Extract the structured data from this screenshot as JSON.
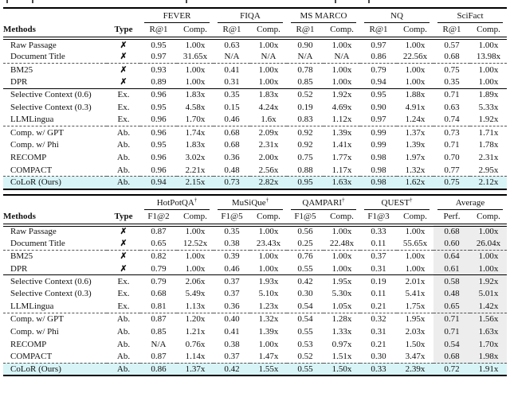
{
  "colors": {
    "highlight_row": "#d8f4f7",
    "average_col_bg": "#ededed",
    "rule": "#000000",
    "dashed_rule": "#555555"
  },
  "tables": [
    {
      "methods_header": "Methods",
      "type_header": "Type",
      "groups": [
        {
          "label": "FEVER",
          "sup": "",
          "metrics": [
            "R@1",
            "Comp."
          ]
        },
        {
          "label": "FIQA",
          "sup": "",
          "metrics": [
            "R@1",
            "Comp."
          ]
        },
        {
          "label": "MS MARCO",
          "sup": "",
          "metrics": [
            "R@1",
            "Comp."
          ]
        },
        {
          "label": "NQ",
          "sup": "",
          "metrics": [
            "R@1",
            "Comp."
          ]
        },
        {
          "label": "SciFact",
          "sup": "",
          "metrics": [
            "R@1",
            "Comp."
          ]
        }
      ],
      "shade_last_cols": 0,
      "row_groups": [
        {
          "sep": "none",
          "rows": [
            {
              "method": "Raw Passage",
              "type": "✗",
              "highlight": false,
              "values": [
                "0.95",
                "1.00x",
                "0.63",
                "1.00x",
                "0.90",
                "1.00x",
                "0.97",
                "1.00x",
                "0.57",
                "1.00x"
              ]
            },
            {
              "method": "Document Title",
              "type": "✗",
              "highlight": false,
              "values": [
                "0.97",
                "31.65x",
                "N/A",
                "N/A",
                "N/A",
                "N/A",
                "0.86",
                "22.56x",
                "0.68",
                "13.98x"
              ]
            }
          ]
        },
        {
          "sep": "dashed",
          "rows": [
            {
              "method": "BM25",
              "type": "✗",
              "highlight": false,
              "values": [
                "0.93",
                "1.00x",
                "0.41",
                "1.00x",
                "0.78",
                "1.00x",
                "0.79",
                "1.00x",
                "0.75",
                "1.00x"
              ]
            },
            {
              "method": "DPR",
              "type": "✗",
              "highlight": false,
              "values": [
                "0.89",
                "1.00x",
                "0.31",
                "1.00x",
                "0.85",
                "1.00x",
                "0.94",
                "1.00x",
                "0.35",
                "1.00x"
              ]
            }
          ]
        },
        {
          "sep": "solid",
          "rows": [
            {
              "method": "Selective Context (0.6)",
              "type": "Ex.",
              "highlight": false,
              "values": [
                "0.96",
                "1.83x",
                "0.35",
                "1.83x",
                "0.52",
                "1.92x",
                "0.95",
                "1.88x",
                "0.71",
                "1.89x"
              ]
            },
            {
              "method": "Selective Context (0.3)",
              "type": "Ex.",
              "highlight": false,
              "values": [
                "0.95",
                "4.58x",
                "0.15",
                "4.24x",
                "0.19",
                "4.69x",
                "0.90",
                "4.91x",
                "0.63",
                "5.33x"
              ]
            },
            {
              "method": "LLMLingua",
              "type": "Ex.",
              "highlight": false,
              "values": [
                "0.96",
                "1.70x",
                "0.46",
                "1.6x",
                "0.83",
                "1.12x",
                "0.97",
                "1.24x",
                "0.74",
                "1.92x"
              ]
            }
          ]
        },
        {
          "sep": "dashed",
          "rows": [
            {
              "method": "Comp. w/ GPT",
              "type": "Ab.",
              "highlight": false,
              "values": [
                "0.96",
                "1.74x",
                "0.68",
                "2.09x",
                "0.92",
                "1.39x",
                "0.99",
                "1.37x",
                "0.73",
                "1.71x"
              ]
            },
            {
              "method": "Comp. w/ Phi",
              "type": "Ab.",
              "highlight": false,
              "values": [
                "0.95",
                "1.83x",
                "0.68",
                "2.31x",
                "0.92",
                "1.41x",
                "0.99",
                "1.39x",
                "0.71",
                "1.78x"
              ]
            },
            {
              "method": "RECOMP",
              "type": "Ab.",
              "highlight": false,
              "values": [
                "0.96",
                "3.02x",
                "0.36",
                "2.00x",
                "0.75",
                "1.77x",
                "0.98",
                "1.97x",
                "0.70",
                "2.31x"
              ]
            },
            {
              "method": "COMPACT",
              "type": "Ab.",
              "highlight": false,
              "values": [
                "0.96",
                "2.21x",
                "0.48",
                "2.56x",
                "0.88",
                "1.17x",
                "0.98",
                "1.32x",
                "0.77",
                "2.95x"
              ]
            }
          ]
        },
        {
          "sep": "dashed",
          "rows": [
            {
              "method": "CoLoR (Ours)",
              "type": "Ab.",
              "highlight": true,
              "values": [
                "0.94",
                "2.15x",
                "0.73",
                "2.82x",
                "0.95",
                "1.63x",
                "0.98",
                "1.62x",
                "0.75",
                "2.12x"
              ]
            }
          ]
        }
      ]
    },
    {
      "methods_header": "Methods",
      "type_header": "Type",
      "groups": [
        {
          "label": "HotPotQA",
          "sup": "†",
          "metrics": [
            "F1@2",
            "Comp."
          ]
        },
        {
          "label": "MuSiQue",
          "sup": "†",
          "metrics": [
            "F1@5",
            "Comp."
          ]
        },
        {
          "label": "QAMPARI",
          "sup": "†",
          "metrics": [
            "F1@5",
            "Comp."
          ]
        },
        {
          "label": "QUEST",
          "sup": "†",
          "metrics": [
            "F1@3",
            "Comp."
          ]
        },
        {
          "label": "Average",
          "sup": "",
          "metrics": [
            "Perf.",
            "Comp."
          ]
        }
      ],
      "shade_last_cols": 2,
      "row_groups": [
        {
          "sep": "none",
          "rows": [
            {
              "method": "Raw Passage",
              "type": "✗",
              "highlight": false,
              "values": [
                "0.87",
                "1.00x",
                "0.35",
                "1.00x",
                "0.56",
                "1.00x",
                "0.33",
                "1.00x",
                "0.68",
                "1.00x"
              ]
            },
            {
              "method": "Document Title",
              "type": "✗",
              "highlight": false,
              "values": [
                "0.65",
                "12.52x",
                "0.38",
                "23.43x",
                "0.25",
                "22.48x",
                "0.11",
                "55.65x",
                "0.60",
                "26.04x"
              ]
            }
          ]
        },
        {
          "sep": "dashed",
          "rows": [
            {
              "method": "BM25",
              "type": "✗",
              "highlight": false,
              "values": [
                "0.82",
                "1.00x",
                "0.39",
                "1.00x",
                "0.76",
                "1.00x",
                "0.37",
                "1.00x",
                "0.64",
                "1.00x"
              ]
            },
            {
              "method": "DPR",
              "type": "✗",
              "highlight": false,
              "values": [
                "0.79",
                "1.00x",
                "0.46",
                "1.00x",
                "0.55",
                "1.00x",
                "0.31",
                "1.00x",
                "0.61",
                "1.00x"
              ]
            }
          ]
        },
        {
          "sep": "solid",
          "rows": [
            {
              "method": "Selective Context (0.6)",
              "type": "Ex.",
              "highlight": false,
              "values": [
                "0.79",
                "2.06x",
                "0.37",
                "1.93x",
                "0.42",
                "1.95x",
                "0.19",
                "2.01x",
                "0.58",
                "1.92x"
              ]
            },
            {
              "method": "Selective Context (0.3)",
              "type": "Ex.",
              "highlight": false,
              "values": [
                "0.68",
                "5.49x",
                "0.37",
                "5.10x",
                "0.30",
                "5.30x",
                "0.11",
                "5.41x",
                "0.48",
                "5.01x"
              ]
            },
            {
              "method": "LLMLingua",
              "type": "Ex.",
              "highlight": false,
              "values": [
                "0.81",
                "1.13x",
                "0.36",
                "1.23x",
                "0.54",
                "1.05x",
                "0.21",
                "1.75x",
                "0.65",
                "1.42x"
              ]
            }
          ]
        },
        {
          "sep": "dashed",
          "rows": [
            {
              "method": "Comp. w/ GPT",
              "type": "Ab.",
              "highlight": false,
              "values": [
                "0.87",
                "1.20x",
                "0.40",
                "1.32x",
                "0.54",
                "1.28x",
                "0.32",
                "1.95x",
                "0.71",
                "1.56x"
              ]
            },
            {
              "method": "Comp. w/ Phi",
              "type": "Ab.",
              "highlight": false,
              "values": [
                "0.85",
                "1.21x",
                "0.41",
                "1.39x",
                "0.55",
                "1.33x",
                "0.31",
                "2.03x",
                "0.71",
                "1.63x"
              ]
            },
            {
              "method": "RECOMP",
              "type": "Ab.",
              "highlight": false,
              "values": [
                "N/A",
                "0.76x",
                "0.38",
                "1.00x",
                "0.53",
                "0.97x",
                "0.21",
                "1.50x",
                "0.54",
                "1.70x"
              ]
            },
            {
              "method": "COMPACT",
              "type": "Ab.",
              "highlight": false,
              "values": [
                "0.87",
                "1.14x",
                "0.37",
                "1.47x",
                "0.52",
                "1.51x",
                "0.30",
                "3.47x",
                "0.68",
                "1.98x"
              ]
            }
          ]
        },
        {
          "sep": "dashed",
          "rows": [
            {
              "method": "CoLoR (Ours)",
              "type": "Ab.",
              "highlight": true,
              "values": [
                "0.86",
                "1.37x",
                "0.42",
                "1.55x",
                "0.55",
                "1.50x",
                "0.33",
                "2.39x",
                "0.72",
                "1.91x"
              ]
            }
          ]
        }
      ]
    }
  ]
}
